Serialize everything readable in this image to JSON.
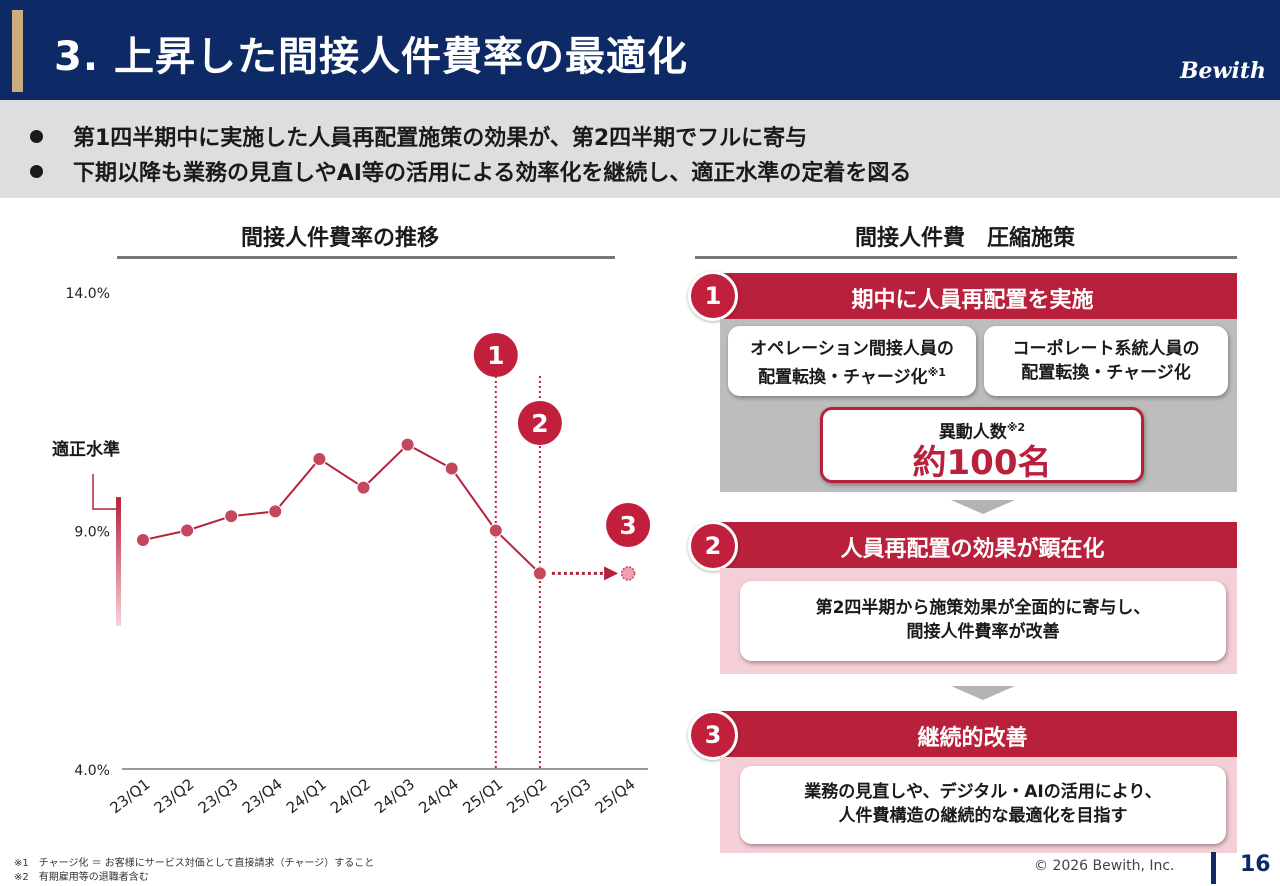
{
  "header": {
    "title": "3. 上昇した間接人件費率の最適化",
    "logo": "Bewith"
  },
  "bullets": [
    "第1四半期中に実施した人員再配置施策の効果が、第2四半期でフルに寄与",
    "下期以降も業務の見直しやAI等の活用による効率化を継続し、適正水準の定着を図る"
  ],
  "chart_section": {
    "title": "間接人件費率の推移",
    "appropriate_level_label": "適正水準",
    "markers": [
      "1",
      "2",
      "3"
    ]
  },
  "chart_data": {
    "type": "line",
    "title": "間接人件費率の推移",
    "categories": [
      "23/Q1",
      "23/Q2",
      "23/Q3",
      "23/Q4",
      "24/Q1",
      "24/Q2",
      "24/Q3",
      "24/Q4",
      "25/Q1",
      "25/Q2",
      "25/Q3",
      "25/Q4"
    ],
    "values": [
      8.8,
      9.0,
      9.3,
      9.4,
      10.5,
      9.9,
      10.8,
      10.3,
      9.0,
      8.1,
      null,
      8.1
    ],
    "y_ticks": [
      "14.0%",
      "9.0%",
      "4.0%"
    ],
    "ylim": [
      4.0,
      14.0
    ],
    "projected_point": {
      "category": "25/Q4",
      "value": 8.1
    },
    "vertical_markers": [
      {
        "category": "25/Q1",
        "label": "1"
      },
      {
        "category": "25/Q2",
        "label": "2"
      }
    ],
    "appropriate_range": [
      7.0,
      9.7
    ],
    "colors": {
      "line": "#b7213c",
      "range": "#e78a9b"
    }
  },
  "measures": {
    "title": "間接人件費　圧縮施策",
    "steps": [
      {
        "num": "1",
        "title": "期中に人員再配置を実施"
      },
      {
        "num": "2",
        "title": "人員再配置の効果が顕在化"
      },
      {
        "num": "3",
        "title": "継続的改善"
      }
    ],
    "step1_cards": [
      {
        "line1": "オペレーション間接人員の",
        "line2": "配置転換・チャージ化",
        "sup": "※1"
      },
      {
        "line1": "コーポレート系統人員の",
        "line2": "配置転換・チャージ化",
        "sup": ""
      }
    ],
    "transfer": {
      "label": "異動人数",
      "sup": "※2",
      "value": "約100名"
    },
    "step2_text": [
      "第2四半期から施策効果が全面的に寄与し、",
      "間接人件費率が改善"
    ],
    "step3_text": [
      "業務の見直しや、デジタル・AIの活用により、",
      "人件費構造の継続的な最適化を目指す"
    ]
  },
  "footnotes": [
    "※1　チャージ化 ＝ お客様にサービス対価として直接請求（チャージ）すること",
    "※2　有期雇用等の退職者含む"
  ],
  "footer": {
    "copyright": "© 2026 Bewith, Inc.",
    "page": "16"
  }
}
